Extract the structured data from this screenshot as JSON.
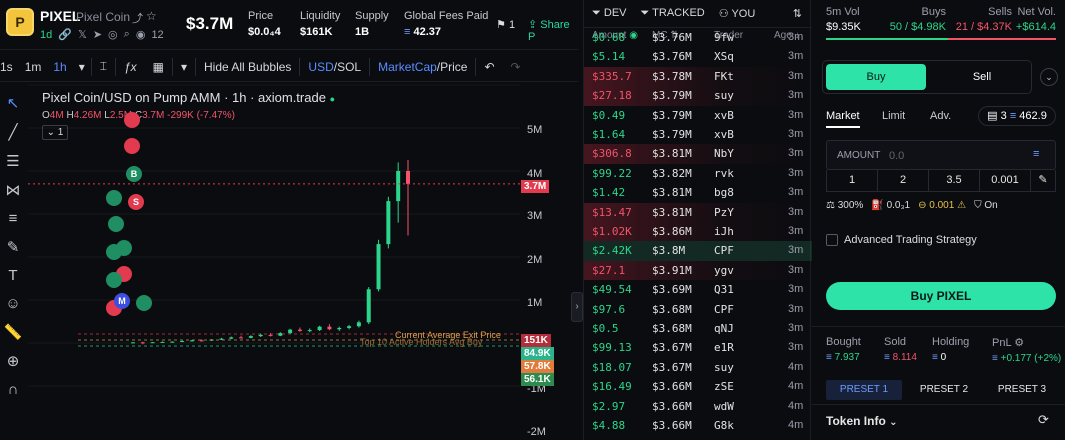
{
  "header": {
    "logo_letter": "P",
    "symbol": "PIXEL",
    "name": "Pixel Coin",
    "age": "1d",
    "holders_count": "12",
    "market_cap": "$3.7M",
    "stats": [
      {
        "label": "Price",
        "value": "$0.0₄4"
      },
      {
        "label": "Liquidity",
        "value": "$161K"
      },
      {
        "label": "Supply",
        "value": "1B"
      },
      {
        "label": "Global Fees Paid",
        "value": "42.37"
      }
    ],
    "watch_count": "1",
    "share_label": "Share P"
  },
  "toolbar": {
    "intervals": [
      "1s",
      "1m",
      "1h"
    ],
    "active_interval": "1h",
    "hide_bubbles": "Hide All Bubbles",
    "currency_a": "USD",
    "currency_sep": "/",
    "currency_b": "SOL",
    "mode_a": "MarketCap",
    "mode_sep": "/",
    "mode_b": "Price"
  },
  "chart": {
    "title": "Pixel Coin/USD on Pump AMM · 1h · axiom.trade",
    "ohlc": {
      "o_label": "O",
      "o": "4M",
      "h_label": "H",
      "h": "4.26M",
      "l_label": "L",
      "l": "2.5M",
      "c_label": "C",
      "c": "3.7M",
      "change": "-299K (-7.47%)"
    },
    "interval_box": "1",
    "current_price_tag": "3.7M",
    "current_price_line_label": "Current Average Exit Price",
    "top_holders_label": "Top 10 Active Holders Avg Buy",
    "y_ticks": [
      "5M",
      "4M",
      "3M",
      "2M",
      "1M",
      "-1M",
      "-2M"
    ],
    "side_tags": [
      {
        "label": "151K",
        "color": "#b32e3c"
      },
      {
        "label": "84.9K",
        "color": "#2bb38b"
      },
      {
        "label": "57.8K",
        "color": "#e07b3c"
      },
      {
        "label": "56.1K",
        "color": "#2e8b4f"
      }
    ]
  },
  "chart_data": {
    "type": "candlestick",
    "xlabel": "",
    "ylabel": "",
    "ylim": [
      -2000000,
      6000000
    ],
    "candles": [
      {
        "o": 10000,
        "h": 20000,
        "l": -5000,
        "c": 15000
      },
      {
        "o": 15000,
        "h": 30000,
        "l": -30000,
        "c": -5000
      },
      {
        "o": 10000,
        "h": 22000,
        "l": 5000,
        "c": 18000
      },
      {
        "o": 18000,
        "h": 35000,
        "l": 12000,
        "c": 25000
      },
      {
        "o": 25000,
        "h": 42000,
        "l": 20000,
        "c": 30000
      },
      {
        "o": 30000,
        "h": 55000,
        "l": 25000,
        "c": 45000
      },
      {
        "o": 45000,
        "h": 70000,
        "l": 38000,
        "c": 60000
      },
      {
        "o": 60000,
        "h": 85000,
        "l": 50000,
        "c": 55000
      },
      {
        "o": 55000,
        "h": 90000,
        "l": 50000,
        "c": 80000
      },
      {
        "o": 80000,
        "h": 120000,
        "l": 70000,
        "c": 100000
      },
      {
        "o": 100000,
        "h": 150000,
        "l": 90000,
        "c": 130000
      },
      {
        "o": 130000,
        "h": 170000,
        "l": 110000,
        "c": 120000
      },
      {
        "o": 120000,
        "h": 180000,
        "l": 110000,
        "c": 160000
      },
      {
        "o": 160000,
        "h": 220000,
        "l": 140000,
        "c": 190000
      },
      {
        "o": 190000,
        "h": 230000,
        "l": 150000,
        "c": 170000
      },
      {
        "o": 170000,
        "h": 250000,
        "l": 160000,
        "c": 230000
      },
      {
        "o": 230000,
        "h": 330000,
        "l": 210000,
        "c": 310000
      },
      {
        "o": 310000,
        "h": 360000,
        "l": 260000,
        "c": 280000
      },
      {
        "o": 280000,
        "h": 340000,
        "l": 250000,
        "c": 300000
      },
      {
        "o": 300000,
        "h": 400000,
        "l": 280000,
        "c": 380000
      },
      {
        "o": 380000,
        "h": 440000,
        "l": 300000,
        "c": 320000
      },
      {
        "o": 320000,
        "h": 380000,
        "l": 280000,
        "c": 350000
      },
      {
        "o": 350000,
        "h": 420000,
        "l": 320000,
        "c": 390000
      },
      {
        "o": 390000,
        "h": 520000,
        "l": 360000,
        "c": 480000
      },
      {
        "o": 480000,
        "h": 1300000,
        "l": 440000,
        "c": 1250000
      },
      {
        "o": 1250000,
        "h": 2400000,
        "l": 1200000,
        "c": 2300000
      },
      {
        "o": 2300000,
        "h": 3400000,
        "l": 2200000,
        "c": 3300000
      },
      {
        "o": 3300000,
        "h": 4200000,
        "l": 2800000,
        "c": 4000000
      },
      {
        "o": 4000000,
        "h": 4260000,
        "l": 2500000,
        "c": 3700000
      }
    ]
  },
  "trades": {
    "filters": [
      "DEV",
      "TRACKED",
      "YOU"
    ],
    "headers": {
      "amount": "Amount",
      "mc": "MC",
      "trader": "Trader",
      "age": "Age"
    },
    "rows": [
      {
        "amt": "$0.68",
        "mc": "$3.76M",
        "trader": "9fw",
        "age": "3m",
        "side": "buy"
      },
      {
        "amt": "$5.14",
        "mc": "$3.76M",
        "trader": "XSq",
        "age": "3m",
        "side": "buy"
      },
      {
        "amt": "$335.7",
        "mc": "$3.78M",
        "trader": "FKt",
        "age": "3m",
        "side": "sell"
      },
      {
        "amt": "$27.18",
        "mc": "$3.79M",
        "trader": "suy",
        "age": "3m",
        "side": "sell"
      },
      {
        "amt": "$0.49",
        "mc": "$3.79M",
        "trader": "xvB",
        "age": "3m",
        "side": "buy"
      },
      {
        "amt": "$1.64",
        "mc": "$3.79M",
        "trader": "xvB",
        "age": "3m",
        "side": "buy"
      },
      {
        "amt": "$306.8",
        "mc": "$3.81M",
        "trader": "NbY",
        "age": "3m",
        "side": "sell"
      },
      {
        "amt": "$99.22",
        "mc": "$3.82M",
        "trader": "rvk",
        "age": "3m",
        "side": "buy"
      },
      {
        "amt": "$1.42",
        "mc": "$3.81M",
        "trader": "bg8",
        "age": "3m",
        "side": "buy"
      },
      {
        "amt": "$13.47",
        "mc": "$3.81M",
        "trader": "PzY",
        "age": "3m",
        "side": "sell"
      },
      {
        "amt": "$1.02K",
        "mc": "$3.86M",
        "trader": "iJh",
        "age": "3m",
        "side": "sell"
      },
      {
        "amt": "$2.42K",
        "mc": "$3.8M",
        "trader": "CPF",
        "age": "3m",
        "side": "buy"
      },
      {
        "amt": "$27.1",
        "mc": "$3.91M",
        "trader": "ygv",
        "age": "3m",
        "side": "sell"
      },
      {
        "amt": "$49.54",
        "mc": "$3.69M",
        "trader": "Q31",
        "age": "3m",
        "side": "buy"
      },
      {
        "amt": "$97.6",
        "mc": "$3.68M",
        "trader": "CPF",
        "age": "3m",
        "side": "buy"
      },
      {
        "amt": "$0.5",
        "mc": "$3.68M",
        "trader": "qNJ",
        "age": "3m",
        "side": "buy"
      },
      {
        "amt": "$99.13",
        "mc": "$3.67M",
        "trader": "e1R",
        "age": "3m",
        "side": "buy"
      },
      {
        "amt": "$18.07",
        "mc": "$3.67M",
        "trader": "suy",
        "age": "4m",
        "side": "buy"
      },
      {
        "amt": "$16.49",
        "mc": "$3.66M",
        "trader": "zSE",
        "age": "4m",
        "side": "buy"
      },
      {
        "amt": "$2.97",
        "mc": "$3.66M",
        "trader": "wdW",
        "age": "4m",
        "side": "buy"
      },
      {
        "amt": "$4.88",
        "mc": "$3.66M",
        "trader": "G8k",
        "age": "4m",
        "side": "buy"
      }
    ]
  },
  "right_panel": {
    "stats": [
      {
        "label": "5m Vol",
        "value": "$9.35K",
        "color": "#ffffff"
      },
      {
        "label": "Buys",
        "value": "50 / $4.98K",
        "color": "#2bd68b"
      },
      {
        "label": "Sells",
        "value": "21 / $4.37K",
        "color": "#f2546a"
      },
      {
        "label": "Net Vol.",
        "value": "+$614.4",
        "color": "#2bd68b"
      }
    ],
    "buy_tab": "Buy",
    "sell_tab": "Sell",
    "order_tabs": [
      "Market",
      "Limit",
      "Adv."
    ],
    "wallet_count": "3",
    "balance": "462.9",
    "amount_label": "AMOUNT",
    "amount_placeholder": "0.0",
    "presets": [
      "1",
      "2",
      "3.5",
      "0.001"
    ],
    "slippage": "300%",
    "priority": "0.0₃1",
    "bribe": "0.001",
    "mev_label": "On",
    "advanced_label": "Advanced Trading Strategy",
    "buy_button": "Buy PIXEL",
    "holdings": [
      {
        "label": "Bought",
        "value": "7.937",
        "color": "#2bd68b"
      },
      {
        "label": "Sold",
        "value": "8.114",
        "color": "#f2546a"
      },
      {
        "label": "Holding",
        "value": "0",
        "color": "#ffffff"
      },
      {
        "label": "PnL",
        "value": "+0.177 (+2%)",
        "color": "#2bd68b"
      }
    ],
    "preset_tabs": [
      "PRESET 1",
      "PRESET 2",
      "PRESET 3"
    ],
    "token_info": "Token Info"
  }
}
